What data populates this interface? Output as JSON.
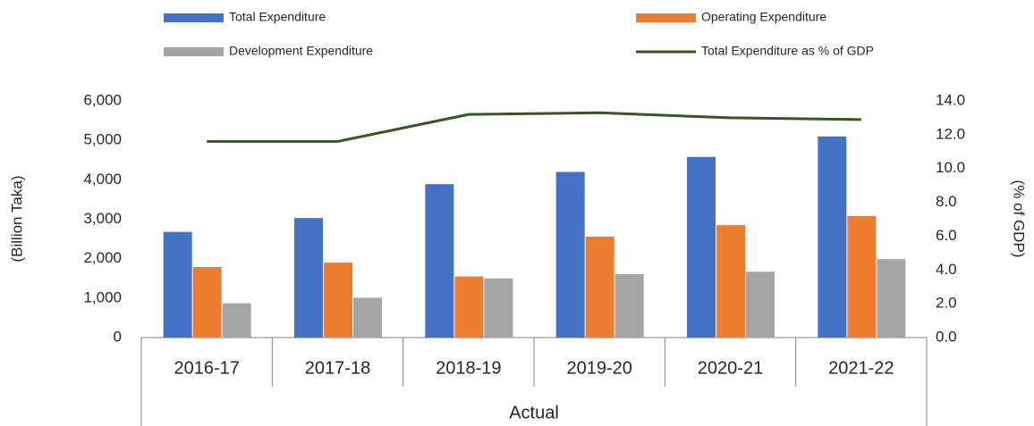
{
  "chart_data": {
    "type": "bar",
    "categories": [
      "2016-17",
      "2017-18",
      "2018-19",
      "2019-20",
      "2020-21",
      "2021-22"
    ],
    "x_group_label": "Actual",
    "y_label": "(Billion Taka)",
    "y2_label": "(% of GDP)",
    "series": [
      {
        "name": "Total Expenditure",
        "color": "#4472c4",
        "values": [
          2680,
          3030,
          3890,
          4200,
          4580,
          5100
        ]
      },
      {
        "name": "Operating Expenditure",
        "color": "#ed7d31",
        "values": [
          1790,
          1900,
          1550,
          2560,
          2850,
          3080
        ]
      },
      {
        "name": "Development Expenditure",
        "color": "#a5a5a5",
        "values": [
          870,
          1010,
          1500,
          1610,
          1670,
          1990
        ]
      },
      {
        "name": "Total Expenditure as % of GDP",
        "color": "#375623",
        "type": "line",
        "axis": "y2",
        "values": [
          11.6,
          11.6,
          13.2,
          13.3,
          13.0,
          12.9
        ]
      }
    ],
    "ylim": [
      0,
      6000
    ],
    "yticks": [
      0,
      {
        "value": 1000,
        "label": "1,000"
      },
      {
        "value": 2000,
        "label": "2,000"
      },
      {
        "value": 3000,
        "label": "3,000"
      },
      {
        "value": 4000,
        "label": "4,000"
      },
      {
        "value": 5000,
        "label": "5,000"
      },
      {
        "value": 6000,
        "label": "6,000"
      }
    ],
    "y2lim": [
      0,
      14
    ],
    "y2ticks": [
      {
        "value": 0,
        "label": "0.0"
      },
      {
        "value": 2,
        "label": "2.0"
      },
      {
        "value": 4,
        "label": "4.0"
      },
      {
        "value": 6,
        "label": "6.0"
      },
      {
        "value": 8,
        "label": "8.0"
      },
      {
        "value": 10,
        "label": "10.0"
      },
      {
        "value": 12,
        "label": "12.0"
      },
      {
        "value": 14,
        "label": "14.0"
      }
    ],
    "grid": false
  }
}
